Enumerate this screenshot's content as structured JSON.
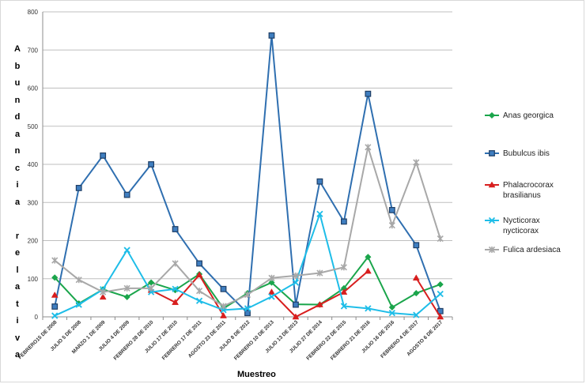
{
  "chart_data": {
    "type": "line",
    "title": "",
    "xlabel": "Muestreo",
    "ylabel": "Abundancia relativa",
    "ylim": [
      0,
      800
    ],
    "yticks": [
      0,
      100,
      200,
      300,
      400,
      500,
      600,
      700,
      800
    ],
    "grid": true,
    "legend_position": "right",
    "categories": [
      "FEBRERO15 DE 2008",
      "JULIO 5 DE 2008",
      "MARZO 1 DE 2009",
      "JULIO 4 DE 2009",
      "FEBRERO 28 DE 2010",
      "JULIO 17 DE 2010",
      "FEBRERO 17 DE 2011",
      "AGOSTO 23 DE 2011",
      "JULIO 8 DE 2012",
      "FEBRERO 10 DE 2013",
      "JULIO 13 DE 2013",
      "JULIO 27 DE 2014",
      "FEBRERO 22 DE 2015",
      "FEBRERO 21 DE 2016",
      "JULIO 16 DE 2016",
      "FEBRERO 4 DE 2017",
      "AGOSTO 6 DE 2017"
    ],
    "series": [
      {
        "name": "Anas georgica",
        "color": "#1aa54b",
        "marker": "diamond",
        "values": [
          103,
          35,
          72,
          52,
          90,
          70,
          112,
          22,
          62,
          90,
          33,
          32,
          75,
          157,
          25,
          62,
          85
        ]
      },
      {
        "name": "Bubulcus ibis",
        "color": "#2f6fb0",
        "marker": "square",
        "values": [
          27,
          338,
          423,
          320,
          400,
          230,
          140,
          73,
          10,
          738,
          32,
          355,
          250,
          585,
          280,
          188,
          15
        ]
      },
      {
        "name": "Phalacrocorax brasilianus",
        "color": "#d81e1e",
        "marker": "triangle",
        "values": [
          57,
          null,
          52,
          null,
          70,
          38,
          110,
          3,
          null,
          65,
          0,
          32,
          65,
          120,
          null,
          102,
          0
        ]
      },
      {
        "name": "Nycticorax nycticorax",
        "color": "#1ebde8",
        "marker": "x",
        "values": [
          3,
          32,
          72,
          175,
          65,
          73,
          42,
          18,
          22,
          53,
          90,
          270,
          28,
          22,
          10,
          5,
          60
        ]
      },
      {
        "name": "Fulica ardesiaca",
        "color": "#a8a8a8",
        "marker": "asterisk",
        "values": [
          148,
          97,
          65,
          75,
          75,
          140,
          68,
          28,
          58,
          102,
          108,
          115,
          130,
          445,
          240,
          405,
          205
        ]
      }
    ]
  },
  "legend": [
    {
      "lines": [
        "Anas georgica"
      ]
    },
    {
      "lines": [
        "Bubulcus ibis"
      ]
    },
    {
      "lines": [
        "Phalacrocorax",
        "brasilianus"
      ]
    },
    {
      "lines": [
        "Nycticorax",
        "nycticorax"
      ]
    },
    {
      "lines": [
        "Fulica ardesiaca"
      ]
    }
  ],
  "ylabel_letters": [
    "A",
    "b",
    "u",
    "n",
    "d",
    "a",
    "n",
    "c",
    "i",
    "a",
    " ",
    "r",
    "e",
    "l",
    "a",
    "t",
    "i",
    "v",
    "a"
  ]
}
